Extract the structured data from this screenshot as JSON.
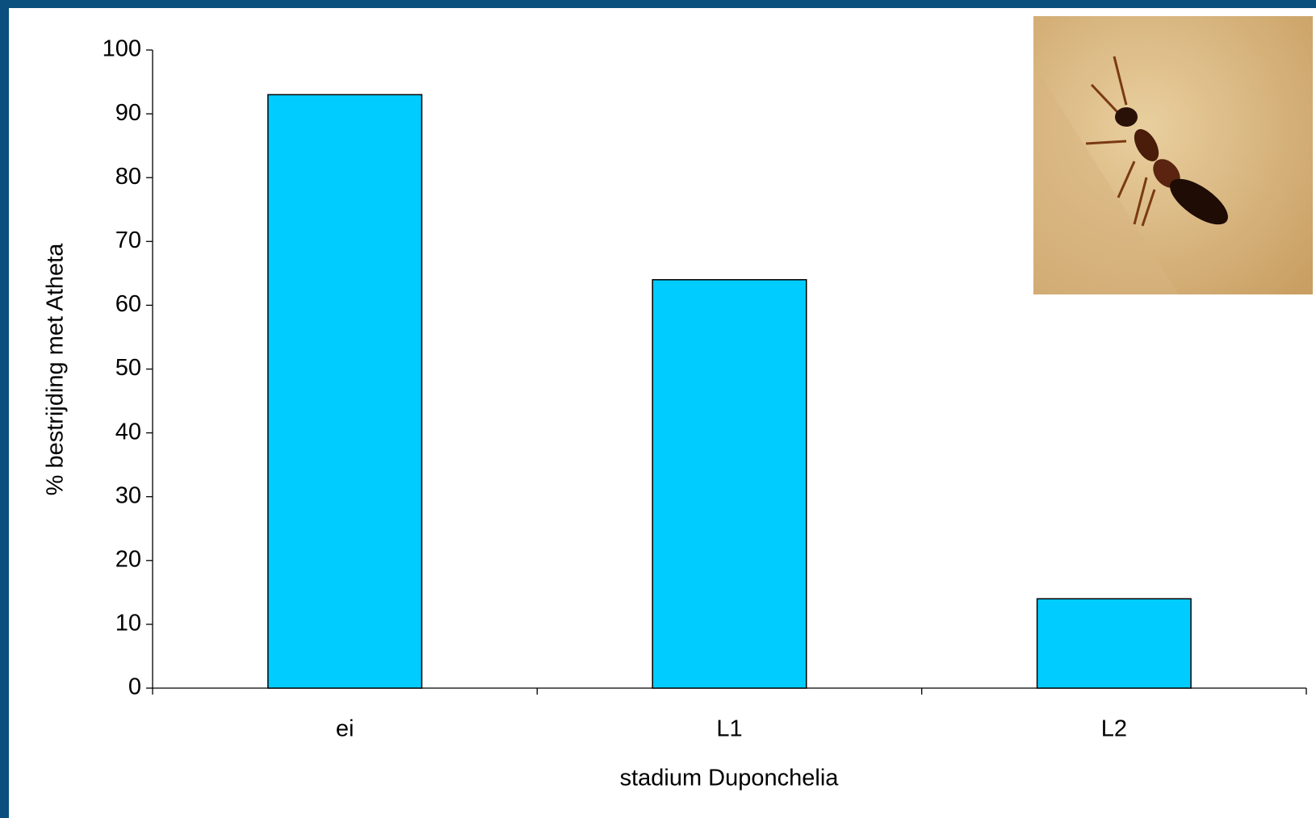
{
  "chart_data": {
    "type": "bar",
    "x_label": "stadium Duponchelia",
    "y_label": "% bestrijding met Atheta",
    "categories": [
      "ei",
      "L1",
      "L2"
    ],
    "values": [
      93,
      64,
      14
    ],
    "color": "#00ccff",
    "ylim": [
      0,
      100
    ],
    "yticks": [
      0,
      10,
      20,
      30,
      40,
      50,
      60,
      70,
      80,
      90,
      100
    ],
    "grid": false
  }
}
